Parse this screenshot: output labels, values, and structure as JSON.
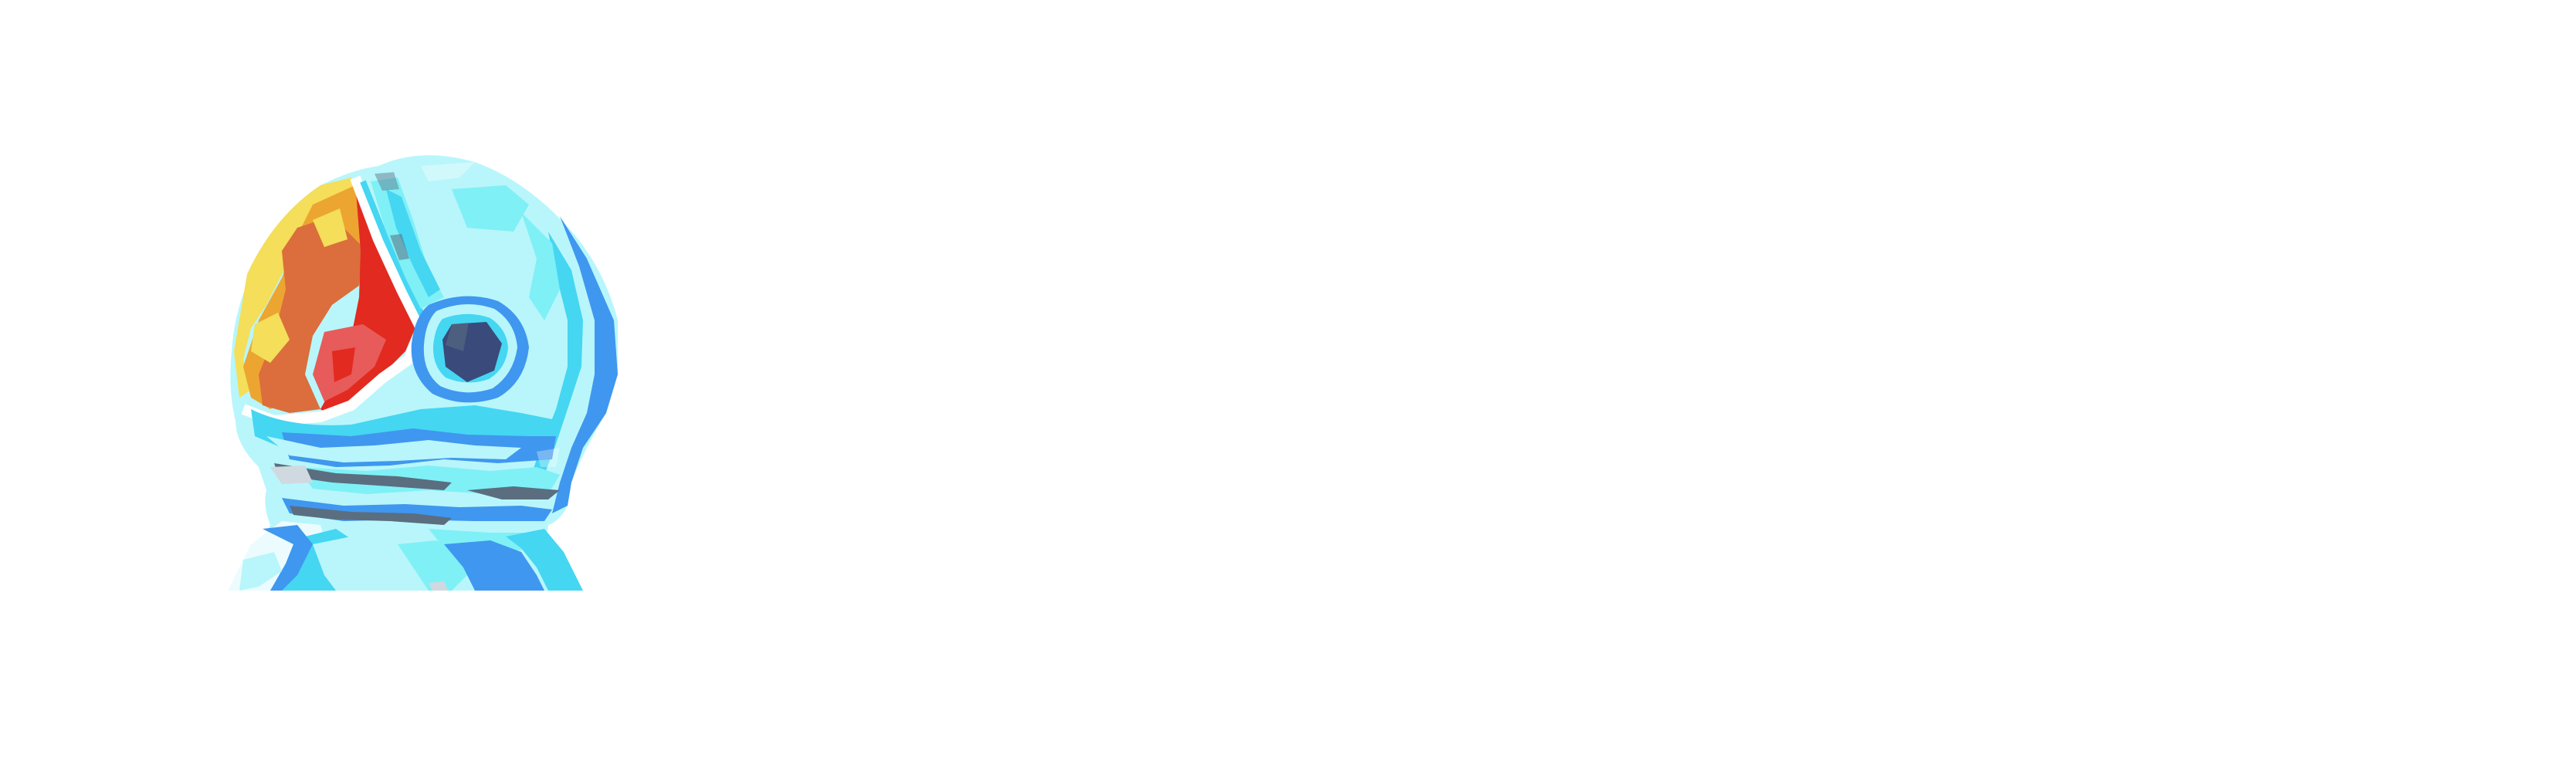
{
  "logo": {
    "icon": "low-poly-head-profile-icon",
    "colors": {
      "background": "#ffffff",
      "face_light": "#b8f6fb",
      "face_mid": "#7ff0f6",
      "face_cyan": "#45d6f2",
      "face_blue": "#3f97ef",
      "brain_yellow": "#f4de5a",
      "brain_orange": "#eca531",
      "brain_dark_orange": "#db6e3c",
      "brain_red": "#e22a20",
      "brain_pink": "#e75b5a",
      "eye_navy": "#3a4a7a",
      "slate": "#5a6e80",
      "neck_pale": "#ecfcfe"
    }
  }
}
